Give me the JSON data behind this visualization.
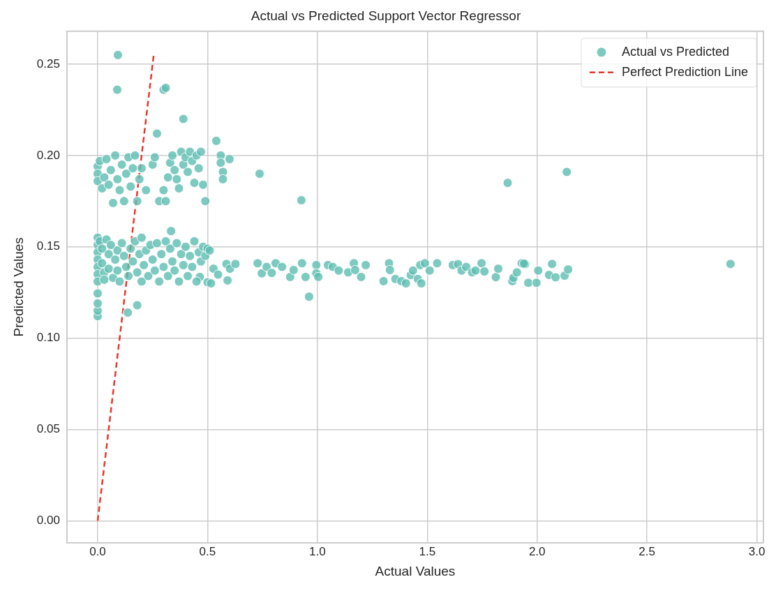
{
  "chart_data": {
    "type": "scatter",
    "title": "Actual vs Predicted Support Vector Regressor",
    "xlabel": "Actual Values",
    "ylabel": "Predicted Values",
    "xlim": [
      -0.14,
      3.03
    ],
    "ylim": [
      -0.012,
      0.268
    ],
    "xticks": [
      {
        "value": 0,
        "label": "0.0"
      },
      {
        "value": 0.5,
        "label": "0.5"
      },
      {
        "value": 1,
        "label": "1.0"
      },
      {
        "value": 1.5,
        "label": "1.5"
      },
      {
        "value": 2,
        "label": "2.0"
      },
      {
        "value": 2.5,
        "label": "2.5"
      },
      {
        "value": 3,
        "label": "3.0"
      }
    ],
    "yticks": [
      {
        "value": 0,
        "label": "0.00"
      },
      {
        "value": 0.05,
        "label": "0.05"
      },
      {
        "value": 0.1,
        "label": "0.10"
      },
      {
        "value": 0.15,
        "label": "0.15"
      },
      {
        "value": 0.2,
        "label": "0.20"
      },
      {
        "value": 0.25,
        "label": "0.25"
      }
    ],
    "grid": true,
    "legend": "top right",
    "series": [
      {
        "name": "Actual vs Predicted",
        "type": "scatter",
        "color": "#5dbdb2",
        "marker": "circle",
        "x": [
          0.092,
          0.089,
          0.3,
          0.31,
          0.39,
          0.27,
          0.54,
          2.135,
          2.88,
          1.866,
          0.927,
          0.737,
          0.56,
          0.56,
          0.57,
          0.57,
          0.6,
          0.962,
          0,
          0,
          0,
          0,
          0.137,
          0.18,
          0.334,
          0.728,
          0.747,
          0.769,
          0.792,
          0.81,
          0.839,
          0.876,
          0.892,
          0.93,
          0.946,
          0.995,
          0.995,
          1.004,
          1.048,
          1.07,
          1.097,
          1.14,
          1.166,
          1.172,
          1.199,
          1.22,
          1.301,
          1.326,
          1.33,
          1.355,
          1.382,
          1.403,
          1.425,
          1.435,
          1.457,
          1.473,
          1.468,
          1.489,
          1.511,
          1.545,
          1.616,
          1.64,
          1.656,
          1.677,
          1.704,
          1.72,
          1.747,
          1.76,
          1.812,
          1.823,
          1.887,
          1.892,
          1.908,
          1.93,
          1.946,
          1.94,
          1.96,
          1.997,
          2.005,
          2.054,
          2.068,
          2.084,
          2.125,
          2.141,
          0.527,
          0.548,
          0.586,
          0.602,
          0.627,
          0.591,
          0.465,
          0.5,
          0.516,
          0,
          0,
          0,
          0,
          0,
          0,
          0,
          0.01,
          0.02,
          0.02,
          0.03,
          0.03,
          0.04,
          0.05,
          0.05,
          0.06,
          0.07,
          0.08,
          0.09,
          0.09,
          0.1,
          0.11,
          0.12,
          0.13,
          0.14,
          0.15,
          0.16,
          0.17,
          0.18,
          0.19,
          0.2,
          0.2,
          0.21,
          0.22,
          0.23,
          0.24,
          0.25,
          0.26,
          0.27,
          0.28,
          0.29,
          0.3,
          0.31,
          0.32,
          0.33,
          0.34,
          0.35,
          0.36,
          0.37,
          0.38,
          0.39,
          0.4,
          0.41,
          0.42,
          0.43,
          0.44,
          0.45,
          0.46,
          0.47,
          0.48,
          0.49,
          0.5,
          0.51,
          0,
          0,
          0,
          0.01,
          0.02,
          0.03,
          0.04,
          0.05,
          0.06,
          0.07,
          0.08,
          0.09,
          0.1,
          0.11,
          0.12,
          0.13,
          0.14,
          0.15,
          0.16,
          0.17,
          0.18,
          0.19,
          0.2,
          0.22,
          0.25,
          0.26,
          0.28,
          0.3,
          0.31,
          0.32,
          0.33,
          0.34,
          0.35,
          0.36,
          0.37,
          0.38,
          0.39,
          0.4,
          0.41,
          0.42,
          0.43,
          0.44,
          0.45,
          0.46,
          0.47,
          0.48,
          0.49
        ],
        "values": [
          0.255,
          0.236,
          0.236,
          0.237,
          0.22,
          0.212,
          0.208,
          0.191,
          0.1406,
          0.185,
          0.1755,
          0.19,
          0.2,
          0.196,
          0.191,
          0.187,
          0.198,
          0.1227,
          0.112,
          0.115,
          0.119,
          0.1245,
          0.114,
          0.118,
          0.1586,
          0.141,
          0.1355,
          0.139,
          0.1357,
          0.141,
          0.139,
          0.1335,
          0.1373,
          0.141,
          0.1335,
          0.14,
          0.1355,
          0.1335,
          0.14,
          0.139,
          0.137,
          0.136,
          0.141,
          0.1373,
          0.1335,
          0.14,
          0.1312,
          0.141,
          0.1373,
          0.1324,
          0.1312,
          0.13,
          0.1345,
          0.137,
          0.1324,
          0.13,
          0.14,
          0.141,
          0.137,
          0.141,
          0.14,
          0.1405,
          0.137,
          0.139,
          0.136,
          0.137,
          0.141,
          0.1365,
          0.1334,
          0.138,
          0.1312,
          0.133,
          0.136,
          0.141,
          0.1405,
          0.1408,
          0.1303,
          0.1303,
          0.137,
          0.1346,
          0.1406,
          0.1333,
          0.1342,
          0.1376,
          0.138,
          0.1348,
          0.1406,
          0.138,
          0.1406,
          0.1316,
          0.1335,
          0.1306,
          0.13,
          0.155,
          0.151,
          0.147,
          0.143,
          0.139,
          0.135,
          0.131,
          0.153,
          0.149,
          0.141,
          0.136,
          0.132,
          0.154,
          0.146,
          0.138,
          0.151,
          0.133,
          0.143,
          0.148,
          0.137,
          0.131,
          0.152,
          0.145,
          0.139,
          0.134,
          0.149,
          0.142,
          0.153,
          0.136,
          0.146,
          0.131,
          0.155,
          0.14,
          0.148,
          0.134,
          0.151,
          0.143,
          0.137,
          0.152,
          0.131,
          0.146,
          0.139,
          0.153,
          0.134,
          0.149,
          0.142,
          0.137,
          0.152,
          0.131,
          0.146,
          0.14,
          0.15,
          0.134,
          0.145,
          0.139,
          0.153,
          0.131,
          0.147,
          0.142,
          0.15,
          0.145,
          0.149,
          0.148,
          0.194,
          0.19,
          0.186,
          0.197,
          0.182,
          0.188,
          0.198,
          0.184,
          0.192,
          0.174,
          0.2,
          0.187,
          0.181,
          0.195,
          0.175,
          0.19,
          0.199,
          0.183,
          0.193,
          0.2,
          0.175,
          0.187,
          0.193,
          0.181,
          0.195,
          0.199,
          0.175,
          0.181,
          0.175,
          0.188,
          0.196,
          0.2,
          0.192,
          0.187,
          0.182,
          0.202,
          0.195,
          0.199,
          0.191,
          0.202,
          0.197,
          0.185,
          0.2,
          0.193,
          0.202,
          0.184,
          0.175
        ]
      },
      {
        "name": "Perfect Prediction Line",
        "type": "line",
        "color": "#e8372c",
        "line_style": "dashed",
        "x": [
          0,
          0.255
        ],
        "values": [
          0,
          0.255
        ]
      }
    ]
  }
}
